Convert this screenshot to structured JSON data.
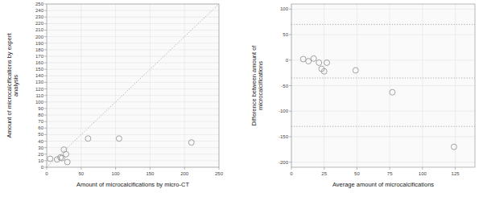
{
  "chart_data": [
    {
      "type": "scatter",
      "x_label": "Amount of microcalcifications by micro-CT",
      "y_label": "Amount of microcalcifications by expert\nanalysis",
      "xlim": [
        0,
        250
      ],
      "ylim": [
        0,
        250
      ],
      "xticks": [
        0,
        50,
        100,
        150,
        200,
        250
      ],
      "yticks": [
        0,
        10,
        20,
        30,
        40,
        50,
        60,
        70,
        80,
        90,
        100,
        110,
        120,
        130,
        140,
        150,
        160,
        170,
        180,
        190,
        200,
        210,
        220,
        230,
        240,
        250
      ],
      "grid": true,
      "series": [
        {
          "type": "scatter",
          "marker": "open-circle",
          "color": "#999999",
          "x": [
            5,
            15,
            20,
            22,
            25,
            28,
            30,
            60,
            105,
            210
          ],
          "values": [
            13,
            12,
            15,
            14,
            27,
            20,
            8,
            44,
            44,
            38
          ]
        },
        {
          "type": "line",
          "line_style": "dotted",
          "color": "#aaaaaa",
          "x": [
            0,
            250
          ],
          "values": [
            0,
            250
          ]
        }
      ]
    },
    {
      "type": "scatter",
      "x_label": "Average amount of microcalcifications",
      "y_label": "Difference between amount of\nmicrocalcifications",
      "xlim": [
        0,
        140
      ],
      "ylim": [
        -210,
        110
      ],
      "xticks": [
        0,
        25,
        50,
        75,
        100,
        125
      ],
      "yticks": [
        -200,
        -150,
        -100,
        -50,
        0,
        50,
        100
      ],
      "grid": true,
      "series": [
        {
          "type": "scatter",
          "marker": "open-circle",
          "color": "#999999",
          "x": [
            9,
            13,
            17,
            21,
            23,
            25,
            27,
            49,
            77,
            124
          ],
          "values": [
            2,
            -2,
            3,
            -5,
            -17,
            -22,
            -5,
            -20,
            -63,
            -170
          ]
        },
        {
          "type": "hline",
          "line_style": "dotted",
          "color": "#aaaaaa",
          "values": [
            70,
            -35,
            -130
          ]
        }
      ]
    }
  ]
}
